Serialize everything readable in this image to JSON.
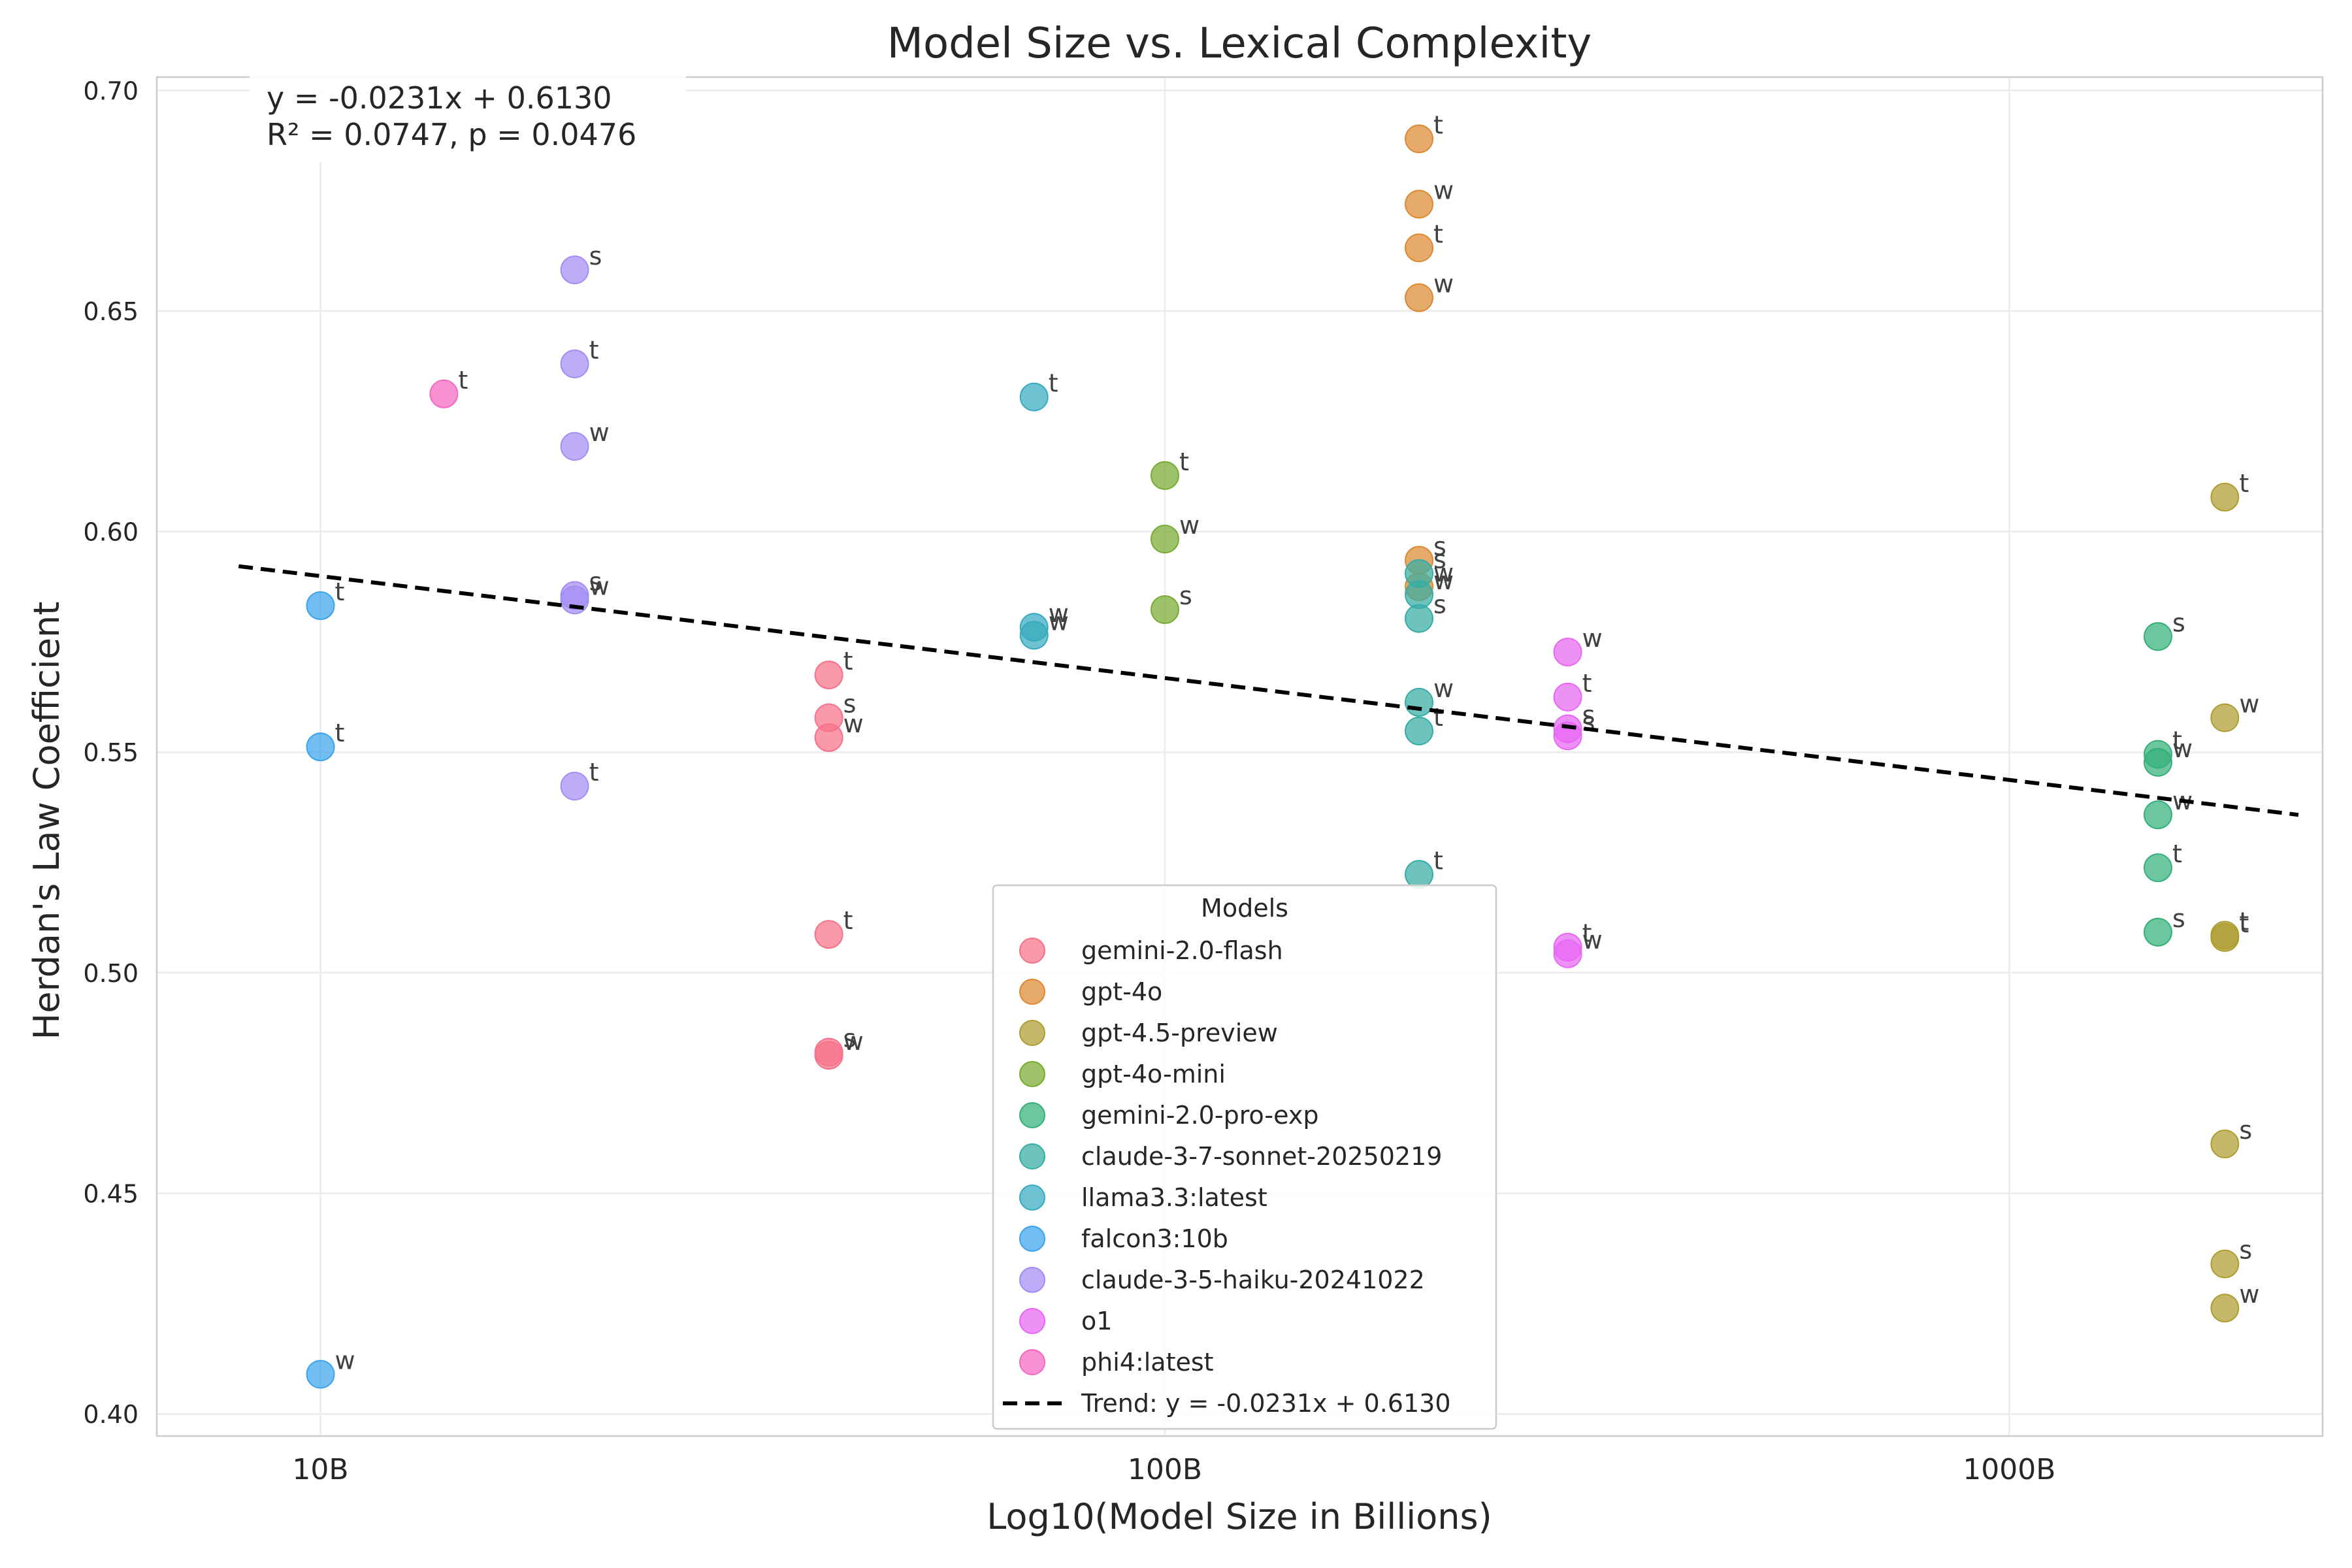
{
  "chart_data": {
    "type": "scatter",
    "title": "Model Size vs. Lexical Complexity",
    "xlabel": "Log10(Model Size in Billions)",
    "ylabel": "Herdan's Law Coefficient",
    "x_scale": "log",
    "xlim": [
      6.4,
      2350
    ],
    "ylim": [
      0.395,
      0.703
    ],
    "x_ticks": [
      {
        "value": 10,
        "label": "10B"
      },
      {
        "value": 100,
        "label": "100B"
      },
      {
        "value": 1000,
        "label": "1000B"
      }
    ],
    "y_ticks": [
      {
        "value": 0.4,
        "label": "0.40"
      },
      {
        "value": 0.45,
        "label": "0.45"
      },
      {
        "value": 0.5,
        "label": "0.50"
      },
      {
        "value": 0.55,
        "label": "0.55"
      },
      {
        "value": 0.6,
        "label": "0.60"
      },
      {
        "value": 0.65,
        "label": "0.65"
      },
      {
        "value": 0.7,
        "label": "0.70"
      }
    ],
    "grid": true,
    "legend_title": "Models",
    "legend_position": "bottom-center",
    "trend": {
      "slope": -0.0231,
      "intercept": 0.613,
      "x_range": [
        8,
        2200
      ],
      "label": "Trend: y = -0.0231x + 0.6130",
      "color": "#000000"
    },
    "annotation": {
      "line1": "y = -0.0231x + 0.6130",
      "line2": "R² = 0.0747, p = 0.0476"
    },
    "series": [
      {
        "name": "gemini-2.0-flash",
        "color": "#f77189",
        "points": [
          {
            "x": 40,
            "y": 0.5675,
            "label": "t"
          },
          {
            "x": 40,
            "y": 0.5578,
            "label": "s"
          },
          {
            "x": 40,
            "y": 0.5533,
            "label": "w"
          },
          {
            "x": 40,
            "y": 0.5087,
            "label": "t"
          },
          {
            "x": 40,
            "y": 0.482,
            "label": "s"
          },
          {
            "x": 40,
            "y": 0.4813,
            "label": "w"
          }
        ]
      },
      {
        "name": "gpt-4o",
        "color": "#dc8932",
        "points": [
          {
            "x": 200,
            "y": 0.689,
            "label": "t"
          },
          {
            "x": 200,
            "y": 0.6742,
            "label": "w"
          },
          {
            "x": 200,
            "y": 0.6643,
            "label": "t"
          },
          {
            "x": 200,
            "y": 0.653,
            "label": "w"
          },
          {
            "x": 200,
            "y": 0.5935,
            "label": "s"
          },
          {
            "x": 200,
            "y": 0.5875,
            "label": "w"
          }
        ]
      },
      {
        "name": "gpt-4.5-preview",
        "color": "#ae9d31",
        "points": [
          {
            "x": 1800,
            "y": 0.6078,
            "label": "t"
          },
          {
            "x": 1800,
            "y": 0.5578,
            "label": "w"
          },
          {
            "x": 1800,
            "y": 0.5085,
            "label": "t"
          },
          {
            "x": 1800,
            "y": 0.508,
            "label": "t"
          },
          {
            "x": 1800,
            "y": 0.4612,
            "label": "s"
          },
          {
            "x": 1800,
            "y": 0.434,
            "label": "s"
          },
          {
            "x": 1800,
            "y": 0.424,
            "label": "w"
          }
        ]
      },
      {
        "name": "gpt-4o-mini",
        "color": "#77ab31",
        "points": [
          {
            "x": 100,
            "y": 0.6127,
            "label": "t"
          },
          {
            "x": 100,
            "y": 0.5983,
            "label": "w"
          },
          {
            "x": 100,
            "y": 0.5823,
            "label": "s"
          }
        ]
      },
      {
        "name": "gemini-2.0-pro-exp",
        "color": "#33b07a",
        "points": [
          {
            "x": 1500,
            "y": 0.5762,
            "label": "s"
          },
          {
            "x": 1500,
            "y": 0.5495,
            "label": "t"
          },
          {
            "x": 1500,
            "y": 0.5477,
            "label": "w"
          },
          {
            "x": 1500,
            "y": 0.5358,
            "label": "w"
          },
          {
            "x": 1500,
            "y": 0.5238,
            "label": "t"
          },
          {
            "x": 1500,
            "y": 0.5092,
            "label": "s"
          }
        ]
      },
      {
        "name": "claude-3-7-sonnet-20250219",
        "color": "#36ada4",
        "points": [
          {
            "x": 200,
            "y": 0.5905,
            "label": "s"
          },
          {
            "x": 200,
            "y": 0.5857,
            "label": "w"
          },
          {
            "x": 200,
            "y": 0.5803,
            "label": "s"
          },
          {
            "x": 200,
            "y": 0.5613,
            "label": "w"
          },
          {
            "x": 200,
            "y": 0.5548,
            "label": "t"
          },
          {
            "x": 200,
            "y": 0.5223,
            "label": "t"
          }
        ]
      },
      {
        "name": "llama3.3:latest",
        "color": "#38aabf",
        "points": [
          {
            "x": 70,
            "y": 0.6305,
            "label": "t"
          },
          {
            "x": 70,
            "y": 0.5783,
            "label": "w"
          },
          {
            "x": 70,
            "y": 0.5765,
            "label": "w"
          }
        ]
      },
      {
        "name": "falcon3:10b",
        "color": "#3ba3ec",
        "points": [
          {
            "x": 10,
            "y": 0.5832,
            "label": "t"
          },
          {
            "x": 10,
            "y": 0.5512,
            "label": "t"
          },
          {
            "x": 10,
            "y": 0.409,
            "label": "w"
          }
        ]
      },
      {
        "name": "claude-3-5-haiku-20241022",
        "color": "#a48cf4",
        "points": [
          {
            "x": 20,
            "y": 0.6593,
            "label": "s"
          },
          {
            "x": 20,
            "y": 0.638,
            "label": "t"
          },
          {
            "x": 20,
            "y": 0.6193,
            "label": "w"
          },
          {
            "x": 20,
            "y": 0.5855,
            "label": "s"
          },
          {
            "x": 20,
            "y": 0.5845,
            "label": "w"
          },
          {
            "x": 20,
            "y": 0.5423,
            "label": "t"
          }
        ]
      },
      {
        "name": "o1",
        "color": "#e866f4",
        "points": [
          {
            "x": 300,
            "y": 0.5727,
            "label": "w"
          },
          {
            "x": 300,
            "y": 0.5625,
            "label": "t"
          },
          {
            "x": 300,
            "y": 0.5553,
            "label": "s"
          },
          {
            "x": 300,
            "y": 0.5537,
            "label": "s"
          },
          {
            "x": 300,
            "y": 0.5058,
            "label": "t"
          },
          {
            "x": 300,
            "y": 0.5043,
            "label": "w"
          }
        ]
      },
      {
        "name": "phi4:latest",
        "color": "#f668c2",
        "points": [
          {
            "x": 14,
            "y": 0.6312,
            "label": "t"
          }
        ]
      }
    ]
  }
}
